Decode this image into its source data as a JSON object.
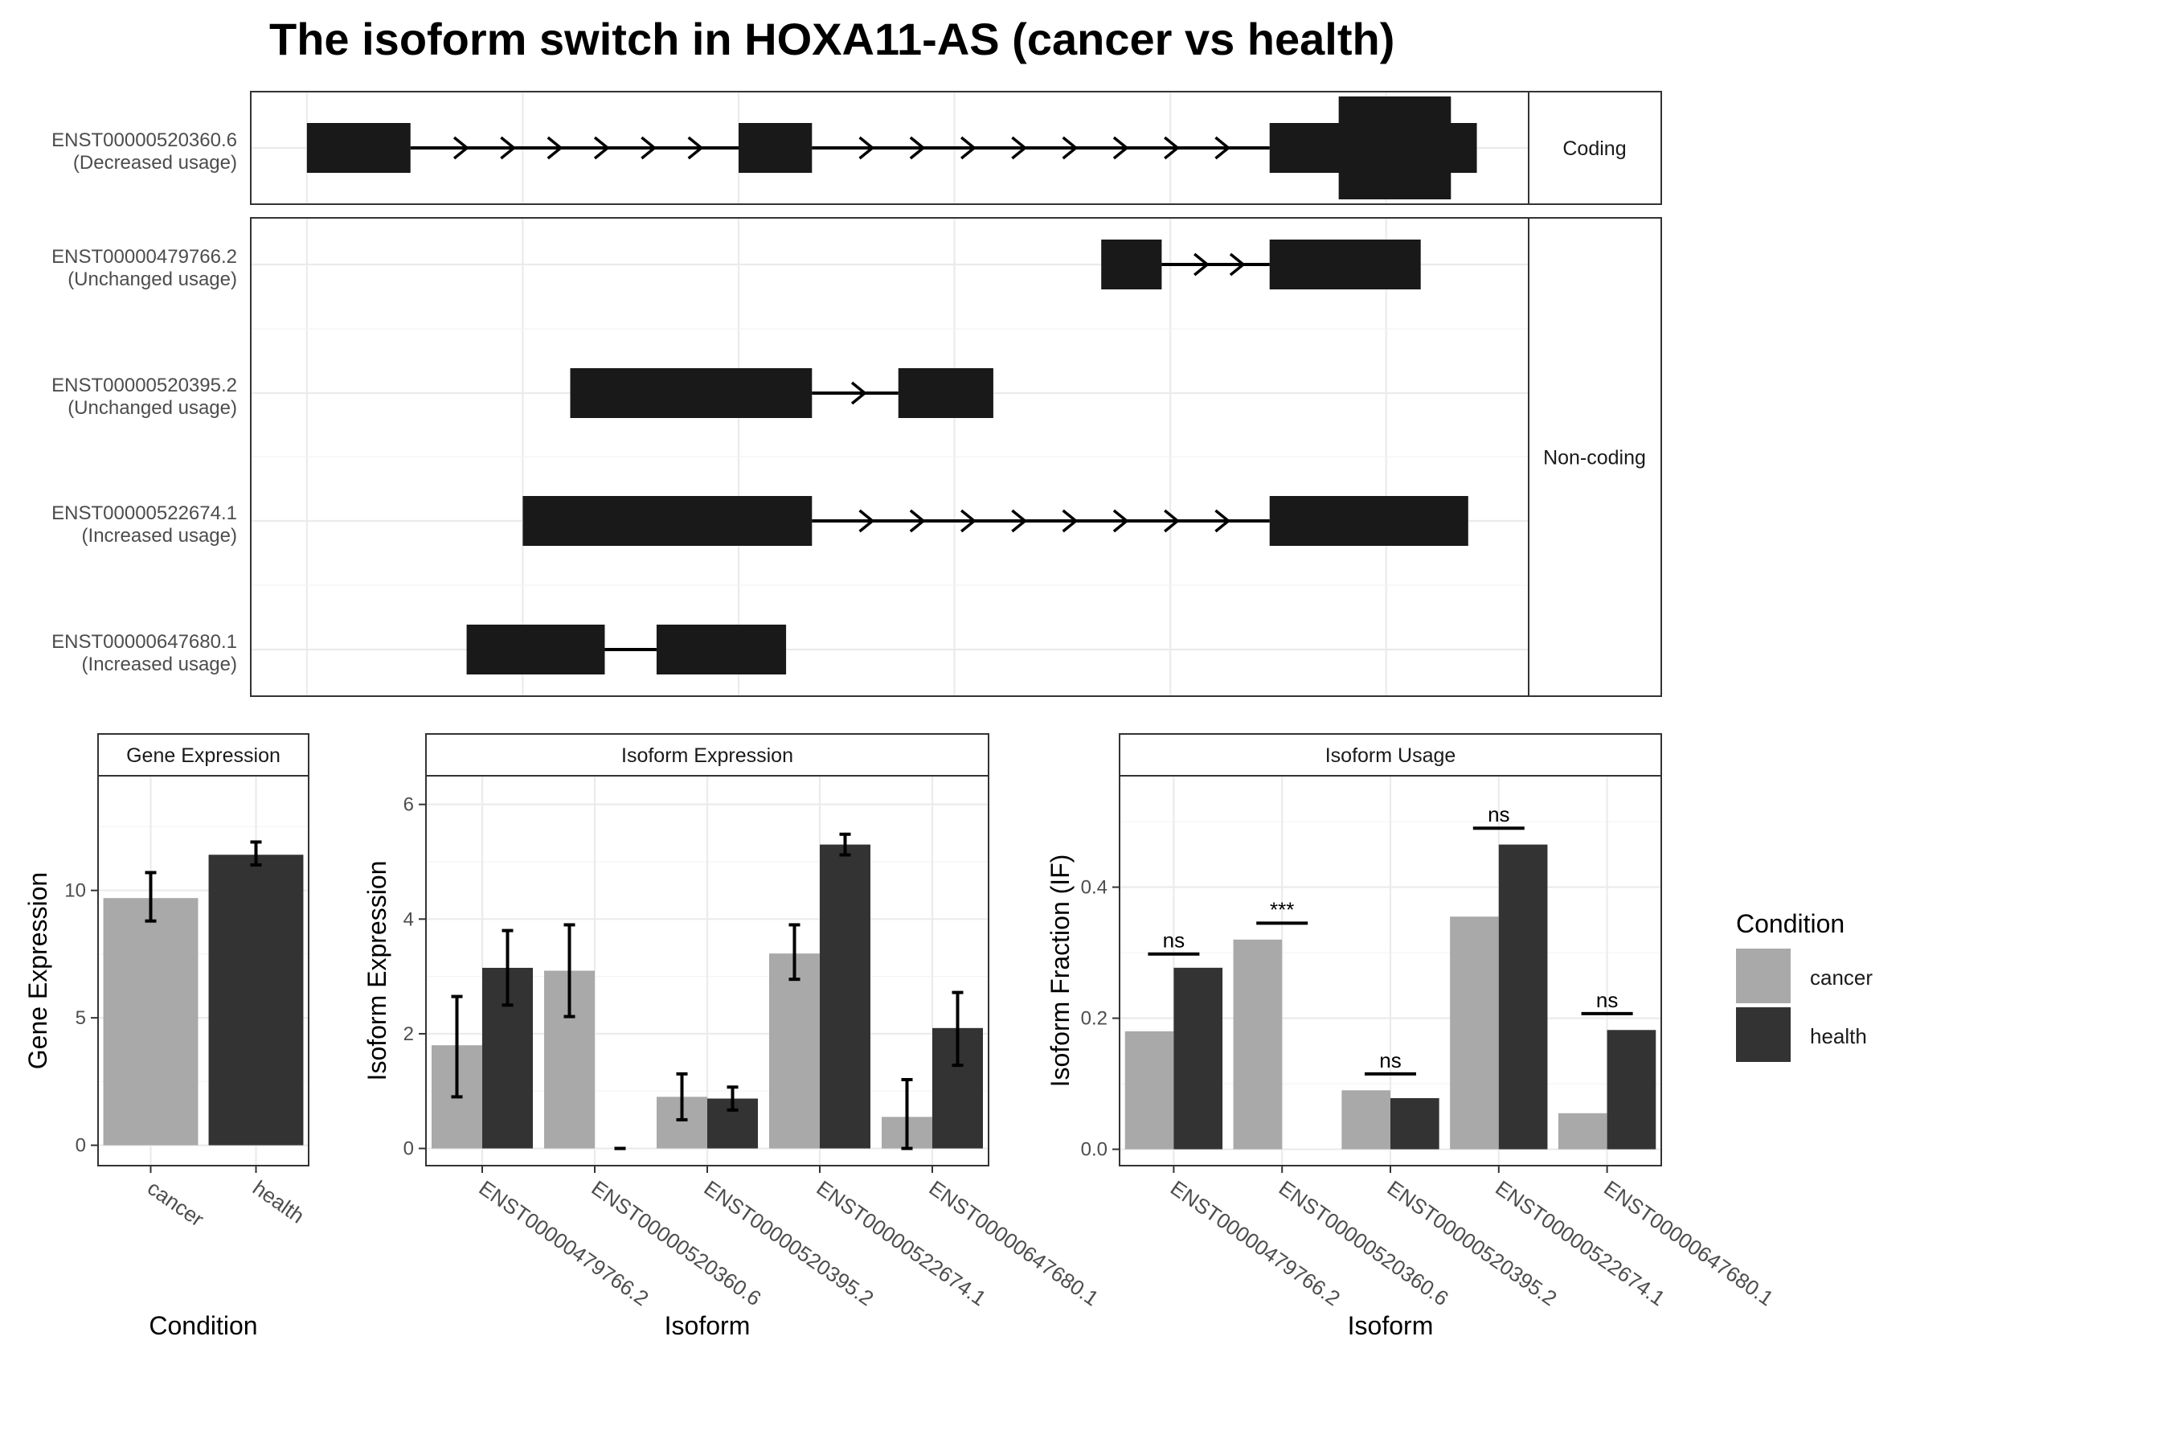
{
  "title": "The isoform switch in HOXA11-AS (cancer vs health)",
  "colors": {
    "cancer": "#a9a9a9",
    "health": "#333333",
    "exon": "#191919"
  },
  "chart_data": [
    {
      "type": "gene-structure",
      "panel": "transcript-structure",
      "facets": [
        "Coding",
        "Non-coding"
      ],
      "transcripts": [
        {
          "id": "ENST00000520360.6",
          "usage": "(Decreased usage)",
          "facet": "Coding",
          "exons": [
            [
              0,
              120
            ],
            [
              500,
              585
            ],
            [
              1115,
              1355
            ]
          ],
          "cds": [
            1195,
            1325
          ],
          "strand": "+"
        },
        {
          "id": "ENST00000479766.2",
          "usage": "(Unchanged usage)",
          "facet": "Non-coding",
          "exons": [
            [
              920,
              990
            ],
            [
              1115,
              1290
            ]
          ],
          "strand": "+"
        },
        {
          "id": "ENST00000520395.2",
          "usage": "(Unchanged usage)",
          "facet": "Non-coding",
          "exons": [
            [
              305,
              585
            ],
            [
              685,
              795
            ]
          ],
          "strand": "+"
        },
        {
          "id": "ENST00000522674.1",
          "usage": "(Increased usage)",
          "facet": "Non-coding",
          "exons": [
            [
              250,
              585
            ],
            [
              1115,
              1345
            ]
          ],
          "strand": "+"
        },
        {
          "id": "ENST00000647680.1",
          "usage": "(Increased usage)",
          "facet": "Non-coding",
          "exons": [
            [
              185,
              345
            ],
            [
              405,
              555
            ]
          ],
          "strand": "none"
        }
      ]
    },
    {
      "type": "bar",
      "panel": "gene-expression",
      "strip": "Gene Expression",
      "xlabel": "Condition",
      "ylabel": "Gene Expression",
      "categories": [
        "cancer",
        "health"
      ],
      "values": [
        9.7,
        11.4
      ],
      "errors": [
        [
          8.8,
          10.7
        ],
        [
          11.0,
          11.9
        ]
      ],
      "ylim": [
        -0.8,
        14.5
      ],
      "yticks": [
        0,
        5,
        10
      ],
      "ytick_labels": [
        "0",
        "5",
        "10"
      ]
    },
    {
      "type": "bar",
      "panel": "isoform-expression",
      "strip": "Isoform Expression",
      "xlabel": "Isoform",
      "ylabel": "Isoform Expression",
      "categories": [
        "ENST00000479766.2",
        "ENST00000520360.6",
        "ENST00000520395.2",
        "ENST00000522674.1",
        "ENST00000647680.1"
      ],
      "series": [
        {
          "name": "cancer",
          "values": [
            1.8,
            3.1,
            0.9,
            3.4,
            0.55
          ],
          "errors": [
            [
              0.9,
              2.65
            ],
            [
              2.3,
              3.9
            ],
            [
              0.5,
              1.3
            ],
            [
              2.95,
              3.9
            ],
            [
              0.0,
              1.2
            ]
          ]
        },
        {
          "name": "health",
          "values": [
            3.15,
            0.0,
            0.87,
            5.3,
            2.1
          ],
          "errors": [
            [
              2.5,
              3.8
            ],
            [
              0.0,
              0.0
            ],
            [
              0.67,
              1.07
            ],
            [
              5.12,
              5.48
            ],
            [
              1.45,
              2.72
            ]
          ]
        }
      ],
      "ylim": [
        -0.3,
        6.5
      ],
      "yticks": [
        0,
        2,
        4,
        6
      ],
      "ytick_labels": [
        "0",
        "2",
        "4",
        "6"
      ]
    },
    {
      "type": "bar",
      "panel": "isoform-usage",
      "strip": "Isoform Usage",
      "xlabel": "Isoform",
      "ylabel": "Isoform Fraction (IF)",
      "categories": [
        "ENST00000479766.2",
        "ENST00000520360.6",
        "ENST00000520395.2",
        "ENST00000522674.1",
        "ENST00000647680.1"
      ],
      "series": [
        {
          "name": "cancer",
          "values": [
            0.18,
            0.32,
            0.09,
            0.355,
            0.055
          ]
        },
        {
          "name": "health",
          "values": [
            0.277,
            0.0,
            0.078,
            0.465,
            0.182
          ]
        }
      ],
      "significance": [
        {
          "label": "ns",
          "y": 0.298
        },
        {
          "label": "***",
          "y": 0.345
        },
        {
          "label": "ns",
          "y": 0.115
        },
        {
          "label": "ns",
          "y": 0.49
        },
        {
          "label": "ns",
          "y": 0.207
        }
      ],
      "ylim": [
        -0.025,
        0.57
      ],
      "yticks": [
        0.0,
        0.2,
        0.4
      ],
      "ytick_labels": [
        "0.0",
        "0.2",
        "0.4"
      ]
    }
  ],
  "legend": {
    "title": "Condition",
    "items": [
      {
        "label": "cancer",
        "color": "#a9a9a9"
      },
      {
        "label": "health",
        "color": "#333333"
      }
    ]
  }
}
